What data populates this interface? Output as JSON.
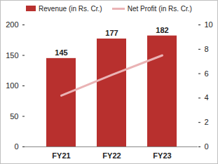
{
  "chart_data": {
    "type": "bar",
    "categories": [
      "FY21",
      "FY22",
      "FY23"
    ],
    "series": [
      {
        "name": "Revenue (in Rs. Cr.)",
        "type": "bar",
        "color": "#b8302e",
        "values": [
          145,
          177,
          182
        ],
        "data_labels": true
      },
      {
        "name": "Net Profit (in Rs. Cr.)",
        "type": "line",
        "color": "#eab3b5",
        "axis": "y2",
        "values": [
          4.2,
          5.9,
          7.5
        ]
      }
    ],
    "ylim": [
      0,
      200
    ],
    "yticks": [
      0,
      50,
      100,
      150,
      200
    ],
    "y2lim": [
      0,
      10
    ],
    "y2ticks": [
      0,
      2,
      4,
      6,
      8,
      10
    ],
    "legend": "top",
    "grid": false
  }
}
